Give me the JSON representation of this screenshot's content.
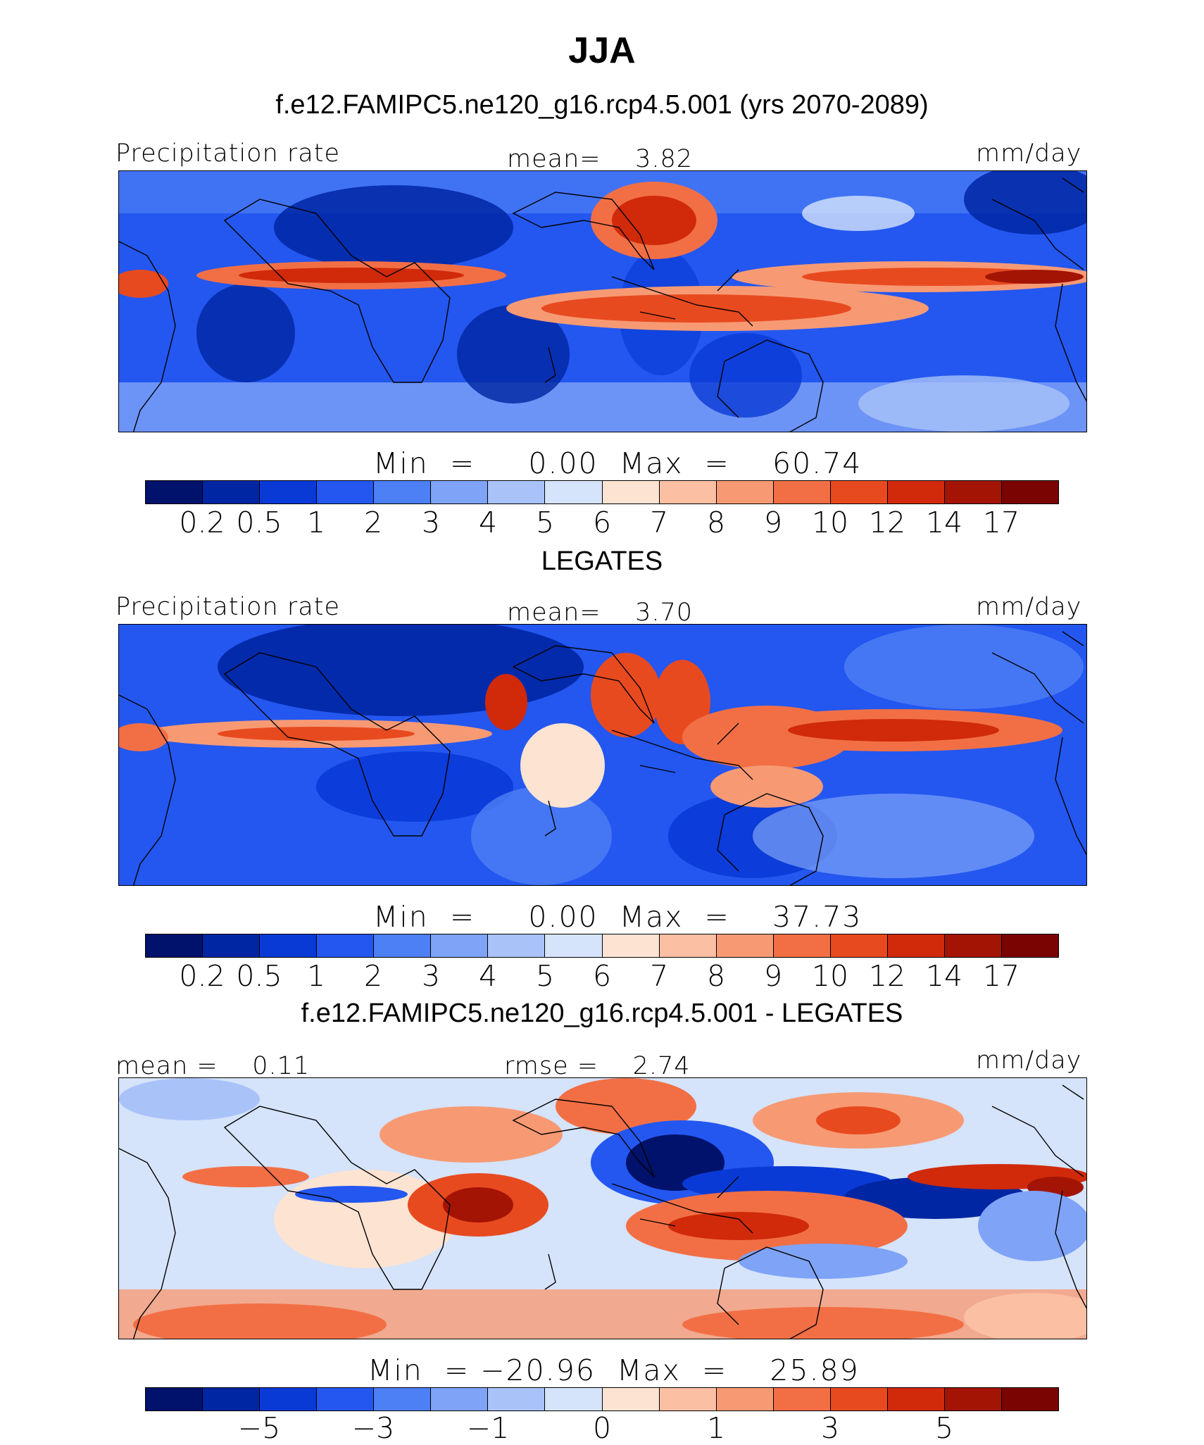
{
  "header": {
    "title": "JJA",
    "subtitle": "f.e12.FAMIPC5.ne120_g16.rcp4.5.001 (yrs 2070-2089)"
  },
  "panels": [
    {
      "left_label": "Precipitation rate",
      "center_label": "mean=    3.82",
      "units": "mm/day",
      "minmax": "Min  =     0.00  Max  =    60.74",
      "section_title": "LEGATES",
      "ticks": [
        "0.2",
        "0.5",
        "1",
        "2",
        "3",
        "4",
        "5",
        "6",
        "7",
        "8",
        "9",
        "10",
        "12",
        "14",
        "17"
      ],
      "colors": [
        "#00126b",
        "#0026a3",
        "#0a3ad6",
        "#2357f0",
        "#4d7ff5",
        "#7ea3f7",
        "#a9c3f9",
        "#d5e3fb",
        "#fde3d2",
        "#fbc0a3",
        "#f79a74",
        "#f26f45",
        "#e84a20",
        "#d02a0b",
        "#a31405",
        "#7a0402"
      ]
    },
    {
      "left_label": "Precipitation rate",
      "center_label": "mean=    3.70",
      "units": "mm/day",
      "minmax": "Min  =     0.00  Max  =    37.73",
      "section_title": "f.e12.FAMIPC5.ne120_g16.rcp4.5.001 - LEGATES",
      "ticks": [
        "0.2",
        "0.5",
        "1",
        "2",
        "3",
        "4",
        "5",
        "6",
        "7",
        "8",
        "9",
        "10",
        "12",
        "14",
        "17"
      ],
      "colors": [
        "#00126b",
        "#0026a3",
        "#0a3ad6",
        "#2357f0",
        "#4d7ff5",
        "#7ea3f7",
        "#a9c3f9",
        "#d5e3fb",
        "#fde3d2",
        "#fbc0a3",
        "#f79a74",
        "#f26f45",
        "#e84a20",
        "#d02a0b",
        "#a31405",
        "#7a0402"
      ]
    },
    {
      "left_label": "mean =    0.11",
      "center_label": "rmse =    2.74",
      "units": "mm/day",
      "minmax": "Min  = −20.96  Max  =    25.89",
      "ticks": [
        "−5",
        "−3",
        "−1",
        "0",
        "1",
        "3",
        "5"
      ],
      "colors": [
        "#00126b",
        "#0026a3",
        "#0a3ad6",
        "#2357f0",
        "#4d7ff5",
        "#7ea3f7",
        "#a9c3f9",
        "#d5e3fb",
        "#fde3d2",
        "#fbc0a3",
        "#f79a74",
        "#f26f45",
        "#e84a20",
        "#d02a0b",
        "#a31405",
        "#7a0402"
      ]
    }
  ]
}
